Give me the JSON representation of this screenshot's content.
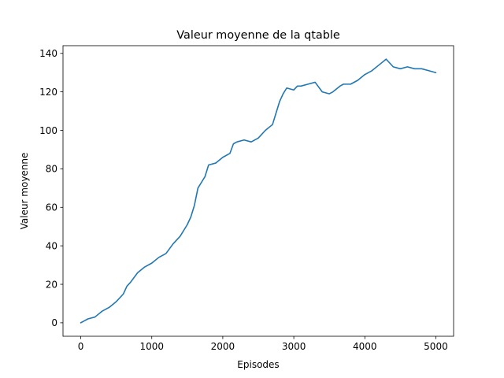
{
  "chart_data": {
    "type": "line",
    "title": "Valeur moyenne de la qtable",
    "xlabel": "Episodes",
    "ylabel": "Valeur moyenne",
    "xlim": [
      -250,
      5250
    ],
    "ylim": [
      -7,
      144
    ],
    "xticks": [
      0,
      1000,
      2000,
      3000,
      4000,
      5000
    ],
    "xtick_labels": [
      "0",
      "1000",
      "2000",
      "3000",
      "4000",
      "5000"
    ],
    "yticks": [
      0,
      20,
      40,
      60,
      80,
      100,
      120,
      140
    ],
    "ytick_labels": [
      "0",
      "20",
      "40",
      "60",
      "80",
      "100",
      "120",
      "140"
    ],
    "grid": false,
    "series": [
      {
        "color": "#1f77b4",
        "x": [
          0,
          50,
          100,
          200,
          300,
          400,
          500,
          600,
          650,
          700,
          800,
          900,
          1000,
          1100,
          1200,
          1300,
          1400,
          1500,
          1550,
          1600,
          1650,
          1700,
          1750,
          1800,
          1900,
          2000,
          2100,
          2150,
          2200,
          2300,
          2400,
          2500,
          2600,
          2700,
          2750,
          2800,
          2850,
          2900,
          3000,
          3050,
          3100,
          3200,
          3300,
          3400,
          3500,
          3550,
          3650,
          3700,
          3800,
          3900,
          4000,
          4100,
          4200,
          4300,
          4400,
          4500,
          4600,
          4700,
          4800,
          4900,
          5000
        ],
        "y": [
          0,
          1,
          2,
          3,
          6,
          8,
          11,
          15,
          19,
          21,
          26,
          29,
          31,
          34,
          36,
          41,
          45,
          51,
          55,
          61,
          70,
          73,
          76,
          82,
          83,
          86,
          88,
          93,
          94,
          95,
          94,
          96,
          100,
          103,
          109,
          115,
          119,
          122,
          121,
          123,
          123,
          124,
          125,
          120,
          119,
          120,
          123,
          124,
          124,
          126,
          129,
          131,
          134,
          137,
          133,
          132,
          133,
          132,
          132,
          131,
          130
        ]
      }
    ]
  }
}
